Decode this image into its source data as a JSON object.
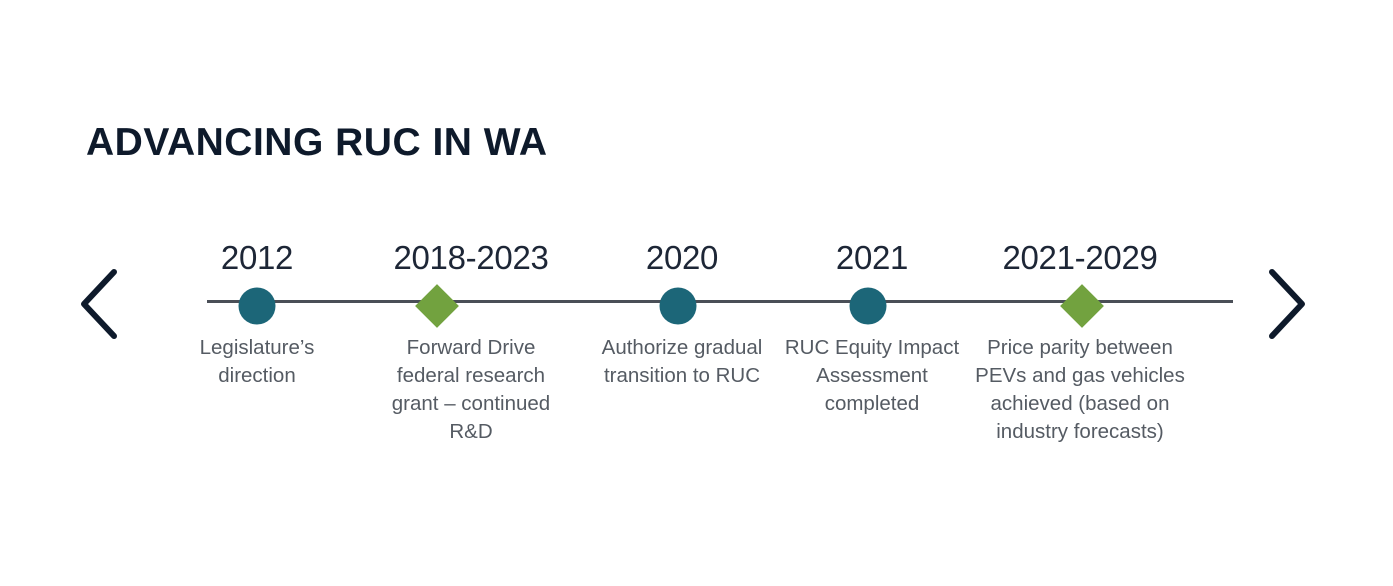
{
  "title": "ADVANCING RUC IN WA",
  "nav": {
    "prev_icon": "chevron-left-icon",
    "next_icon": "chevron-right-icon"
  },
  "colors": {
    "title": "#0e1a2b",
    "line": "#4a4f57",
    "circle_marker": "#1c6678",
    "diamond_marker": "#72a23f",
    "year_text": "#1d2636",
    "desc_text": "#555b63"
  },
  "milestones": [
    {
      "year": "2012",
      "marker": "circle",
      "description": "Legislature’s\ndirection"
    },
    {
      "year": "2018-2023",
      "marker": "diamond",
      "description": "Forward Drive\nfederal research\ngrant – continued\nR&D"
    },
    {
      "year": "2020",
      "marker": "circle",
      "description": "Authorize gradual\ntransition to RUC"
    },
    {
      "year": "2021",
      "marker": "circle",
      "description": "RUC Equity Impact\nAssessment\ncompleted"
    },
    {
      "year": "2021-2029",
      "marker": "diamond",
      "description": "Price parity between\nPEVs and gas vehicles\nachieved (based on\nindustry forecasts)"
    }
  ]
}
